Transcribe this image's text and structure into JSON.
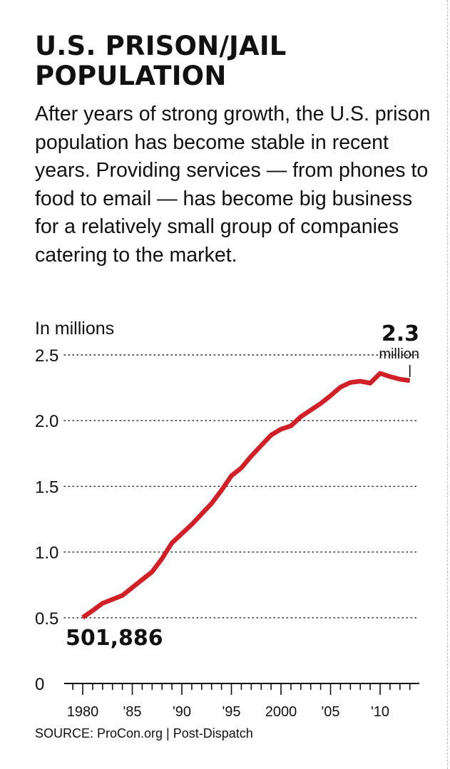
{
  "header": {
    "title": "U.S. PRISON/JAIL POPULATION",
    "subtitle": "After years of strong growth, the U.S. prison population has become stable in recent years. Providing services — from phones to food to email — has become big business for a relatively small group of companies catering to the market."
  },
  "footer": {
    "source": "SOURCE: ProCon.org  |  Post-Dispatch"
  },
  "colors": {
    "line": "#d12027",
    "text": "#111111",
    "grid": "#222222"
  },
  "chart_data": {
    "type": "line",
    "title": "U.S. PRISON/JAIL POPULATION",
    "ylabel": "In millions",
    "xlabel": "",
    "ylim": [
      0,
      2.5
    ],
    "xlim": [
      1979,
      2014
    ],
    "grid": true,
    "y_ticks": [
      {
        "value": 0,
        "label": "0"
      },
      {
        "value": 0.5,
        "label": "0.5"
      },
      {
        "value": 1.0,
        "label": "1.0"
      },
      {
        "value": 1.5,
        "label": "1.5"
      },
      {
        "value": 2.0,
        "label": "2.0"
      },
      {
        "value": 2.5,
        "label": "2.5"
      }
    ],
    "x_ticks": [
      {
        "value": 1980,
        "label": "1980"
      },
      {
        "value": 1985,
        "label": "'85"
      },
      {
        "value": 1990,
        "label": "'90"
      },
      {
        "value": 1995,
        "label": "'95"
      },
      {
        "value": 2000,
        "label": "2000"
      },
      {
        "value": 2005,
        "label": "'05"
      },
      {
        "value": 2010,
        "label": "'10"
      }
    ],
    "series": [
      {
        "name": "U.S. prison/jail population",
        "x": [
          1980,
          1981,
          1982,
          1983,
          1984,
          1985,
          1986,
          1987,
          1988,
          1989,
          1990,
          1991,
          1992,
          1993,
          1994,
          1995,
          1996,
          1997,
          1998,
          1999,
          2000,
          2001,
          2002,
          2003,
          2004,
          2005,
          2006,
          2007,
          2008,
          2009,
          2010,
          2011,
          2012,
          2013
        ],
        "values": [
          0.502,
          0.555,
          0.61,
          0.64,
          0.67,
          0.73,
          0.79,
          0.85,
          0.95,
          1.07,
          1.14,
          1.21,
          1.29,
          1.37,
          1.47,
          1.58,
          1.64,
          1.73,
          1.81,
          1.89,
          1.935,
          1.96,
          2.03,
          2.08,
          2.13,
          2.19,
          2.255,
          2.29,
          2.3,
          2.285,
          2.36,
          2.335,
          2.315,
          2.305
        ]
      }
    ],
    "annotations": {
      "start_value": "501,886",
      "end_value": "2.3",
      "end_unit": "million"
    }
  }
}
